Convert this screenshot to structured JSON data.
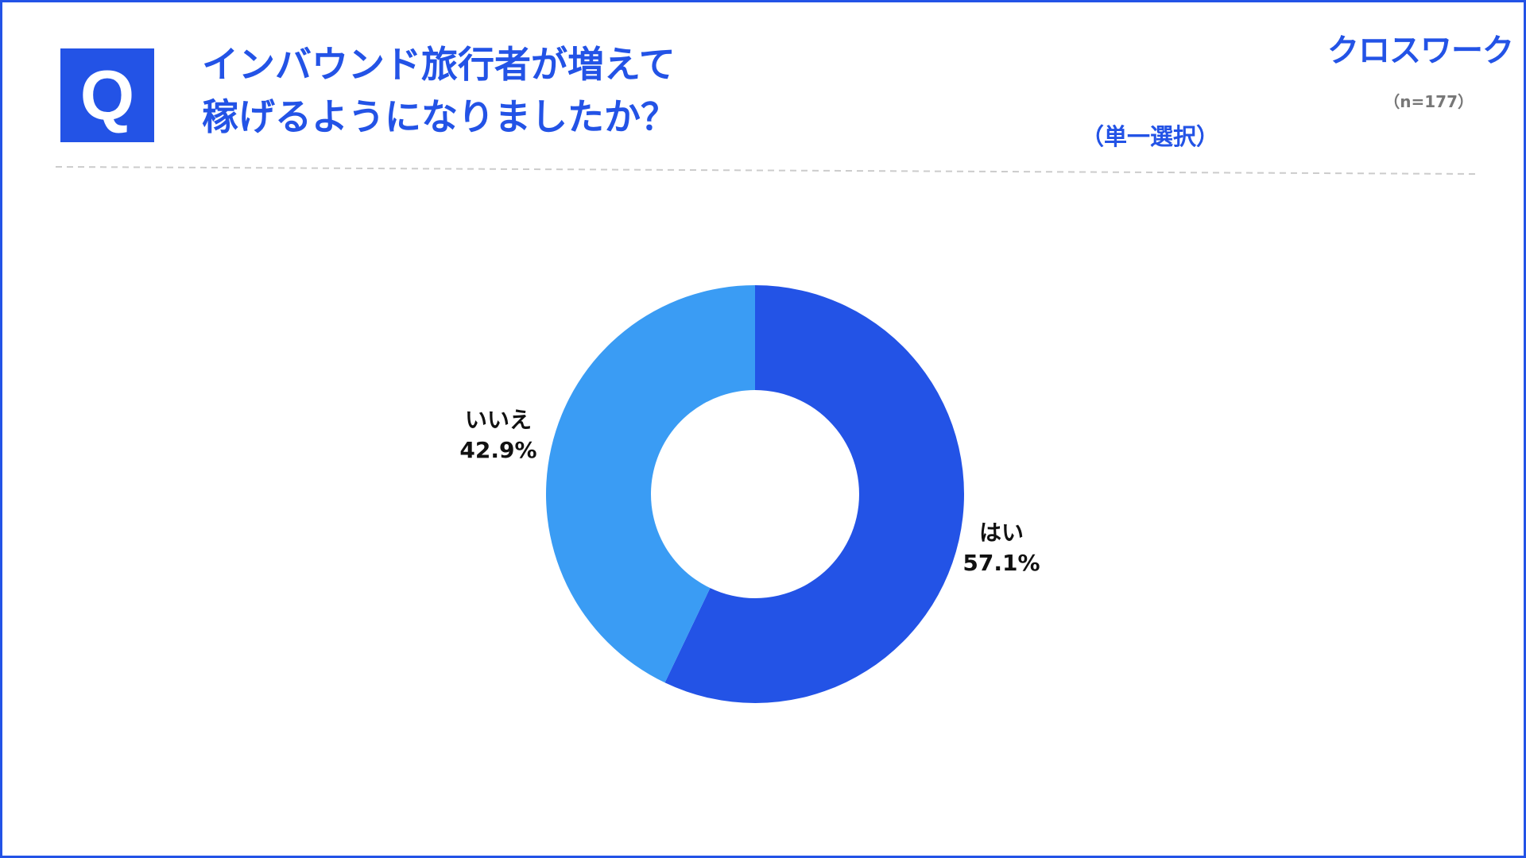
{
  "header": {
    "q_badge": "Q",
    "question_line1": "インバウンド旅行者が増えて",
    "question_line2": "稼げるようになりましたか？",
    "logo": "クロスワーク",
    "sample_size": "（n=177）",
    "select_type": "（単一選択）"
  },
  "colors": {
    "brand": "#2353e6",
    "yes": "#2353e6",
    "no": "#3a9cf4"
  },
  "chart_data": {
    "type": "pie",
    "donut": true,
    "title": "",
    "categories": [
      "はい",
      "いいえ"
    ],
    "values": [
      57.1,
      42.9
    ],
    "value_labels": [
      "57.1%",
      "42.9%"
    ],
    "start": "top",
    "direction": "clockwise",
    "legend": "none"
  }
}
